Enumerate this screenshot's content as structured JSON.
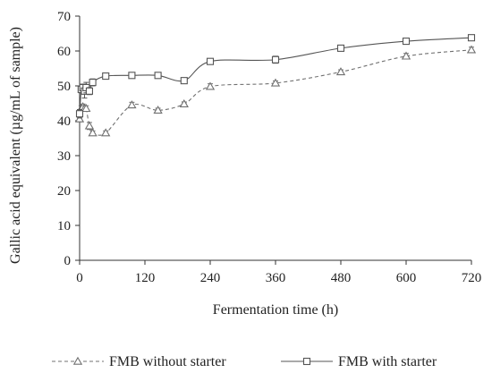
{
  "chart_data": {
    "type": "line",
    "xlabel": "Fermentation time (h)",
    "ylabel": "Gallic acid equivalent (µg/mL of sample)",
    "xlim": [
      0,
      720
    ],
    "ylim": [
      0,
      70
    ],
    "xticks": [
      0,
      120,
      240,
      360,
      480,
      600,
      720
    ],
    "yticks": [
      0,
      10,
      20,
      30,
      40,
      50,
      60,
      70
    ],
    "grid": false,
    "legend_position": "bottom",
    "series": [
      {
        "name": "FMB without starter",
        "marker": "triangle",
        "line_style": "dashed",
        "color": "#707070",
        "x": [
          0,
          3,
          6,
          9,
          12,
          18,
          24,
          48,
          96,
          144,
          192,
          240,
          360,
          480,
          600,
          720
        ],
        "y": [
          40.5,
          43.5,
          44.0,
          43.5,
          43.5,
          38.5,
          36.5,
          36.5,
          44.5,
          43.0,
          44.8,
          49.8,
          50.8,
          54.0,
          58.5,
          60.3
        ],
        "err": [
          0.8,
          0.8,
          0.8,
          0.8,
          0.8,
          1.0,
          0.6,
          0.6,
          0.8,
          0.6,
          0.6,
          0.8,
          0.6,
          0.6,
          0.8,
          0.8
        ]
      },
      {
        "name": "FMB with starter",
        "marker": "square",
        "line_style": "solid",
        "color": "#555555",
        "x": [
          0,
          3,
          6,
          9,
          12,
          18,
          24,
          48,
          96,
          144,
          192,
          240,
          360,
          480,
          600,
          720
        ],
        "y": [
          42.0,
          49.0,
          49.5,
          48.5,
          49.5,
          48.5,
          51.0,
          52.8,
          53.0,
          53.0,
          51.5,
          57.0,
          57.5,
          60.8,
          62.8,
          63.8
        ],
        "err": [
          1.2,
          1.0,
          1.0,
          2.0,
          1.5,
          1.0,
          1.0,
          0.8,
          0.6,
          0.8,
          0.8,
          0.8,
          1.0,
          0.8,
          0.6,
          0.6
        ]
      }
    ]
  }
}
